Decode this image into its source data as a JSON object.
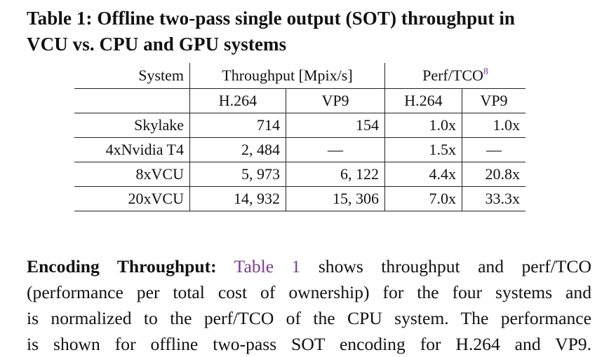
{
  "caption": {
    "line1": "Table 1: Offline two-pass single output (SOT) throughput in",
    "line2": "VCU vs. CPU and GPU systems"
  },
  "table": {
    "header": {
      "system": "System",
      "throughput": "Throughput [Mpix/s]",
      "perf": "Perf/TCO",
      "footnote": "8"
    },
    "subheader": [
      "H.264",
      "VP9",
      "H.264",
      "VP9"
    ],
    "rows": [
      {
        "system": "Skylake",
        "tp_h264": "714",
        "tp_vp9": "154",
        "pt_h264": "1.0x",
        "pt_vp9": "1.0x"
      },
      {
        "system": "4xNvidia T4",
        "tp_h264": "2, 484",
        "tp_vp9": "—",
        "pt_h264": "1.5x",
        "pt_vp9": "—"
      },
      {
        "system": "8xVCU",
        "tp_h264": "5, 973",
        "tp_vp9": "6, 122",
        "pt_h264": "4.4x",
        "pt_vp9": "20.8x"
      },
      {
        "system": "20xVCU",
        "tp_h264": "14, 932",
        "tp_vp9": "15, 306",
        "pt_h264": "7.0x",
        "pt_vp9": "33.3x"
      }
    ]
  },
  "paragraph": {
    "lead": "Encoding Throughput:",
    "ref": "Table 1",
    "line1_rest": "shows throughput and perf/TCO",
    "line2": "(performance per total cost of ownership) for the four systems and",
    "line3": "is normalized to the perf/TCO of the CPU system. The performance",
    "line4": "is shown for offline two-pass SOT encoding for H.264 and VP9."
  },
  "colors": {
    "link": "#7a3d91",
    "text": "#111111"
  }
}
